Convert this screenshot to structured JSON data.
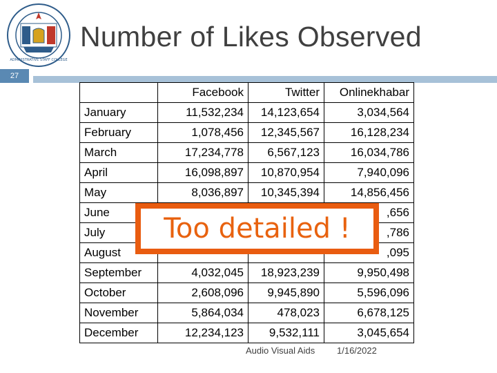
{
  "slide": {
    "title": "Number of Likes Observed",
    "number": "27",
    "logo_text": "ADMINISTRATIVE STAFF COLLEGE"
  },
  "table": {
    "columns": [
      "",
      "Facebook",
      "Twitter",
      "Onlinekhabar"
    ],
    "rows": [
      {
        "month": "January",
        "facebook": "11,532,234",
        "twitter": "14,123,654",
        "onlinekhabar": "3,034,564"
      },
      {
        "month": "February",
        "facebook": "1,078,456",
        "twitter": "12,345,567",
        "onlinekhabar": "16,128,234"
      },
      {
        "month": "March",
        "facebook": "17,234,778",
        "twitter": "6,567,123",
        "onlinekhabar": "16,034,786"
      },
      {
        "month": "April",
        "facebook": "16,098,897",
        "twitter": "10,870,954",
        "onlinekhabar": "7,940,096"
      },
      {
        "month": "May",
        "facebook": "8,036,897",
        "twitter": "10,345,394",
        "onlinekhabar": "14,856,456"
      },
      {
        "month": "June",
        "facebook": "",
        "twitter": "",
        "onlinekhabar": ",656"
      },
      {
        "month": "July",
        "facebook": "",
        "twitter": "",
        "onlinekhabar": ",786"
      },
      {
        "month": "August",
        "facebook": "",
        "twitter": "",
        "onlinekhabar": ",095"
      },
      {
        "month": "September",
        "facebook": "4,032,045",
        "twitter": "18,923,239",
        "onlinekhabar": "9,950,498"
      },
      {
        "month": "October",
        "facebook": "2,608,096",
        "twitter": "9,945,890",
        "onlinekhabar": "5,596,096"
      },
      {
        "month": "November",
        "facebook": "5,864,034",
        "twitter": "478,023",
        "onlinekhabar": "6,678,125"
      },
      {
        "month": "December",
        "facebook": "12,234,123",
        "twitter": "9,532,111",
        "onlinekhabar": "3,045,654"
      }
    ]
  },
  "overlay": {
    "text": "Too detailed !",
    "color": "#e8620f"
  },
  "footer": {
    "left": "Audio Visual Aids",
    "right": "1/16/2022"
  },
  "colors": {
    "title": "#404040",
    "slide_number_bg": "#5a89b3",
    "header_line": "#a7c1d8",
    "overlay_border": "#e95c10"
  }
}
